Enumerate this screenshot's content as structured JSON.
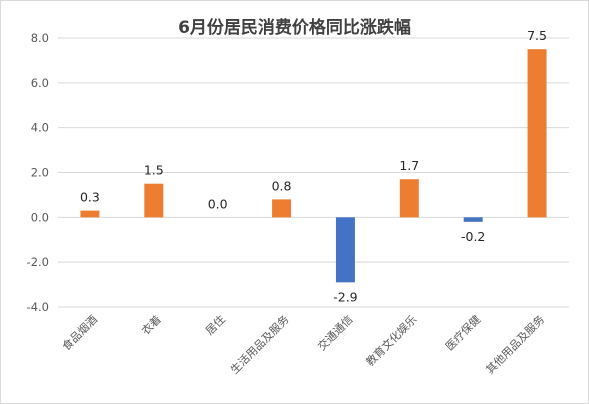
{
  "chart_data": {
    "type": "bar",
    "title": "6月份居民消费价格同比涨跌幅",
    "categories": [
      "食品烟酒",
      "衣着",
      "居住",
      "生活用品及服务",
      "交通通信",
      "教育文化娱乐",
      "医疗保健",
      "其他用品及服务"
    ],
    "values": [
      0.3,
      1.5,
      0.0,
      0.8,
      -2.9,
      1.7,
      -0.2,
      7.5
    ],
    "value_labels": [
      "0.3",
      "1.5",
      "0.0",
      "0.8",
      "-2.9",
      "1.7",
      "-0.2",
      "7.5"
    ],
    "ylim": [
      -4.0,
      8.0
    ],
    "yticks": [
      "8.0",
      "6.0",
      "4.0",
      "2.0",
      "0.0",
      "-2.0",
      "-4.0"
    ],
    "ytick_values": [
      8,
      6,
      4,
      2,
      0,
      -2,
      -4
    ],
    "grid": true,
    "colors": {
      "positive": "#ed7d31",
      "negative": "#4472c4",
      "grid": "#d9d9d9"
    }
  }
}
